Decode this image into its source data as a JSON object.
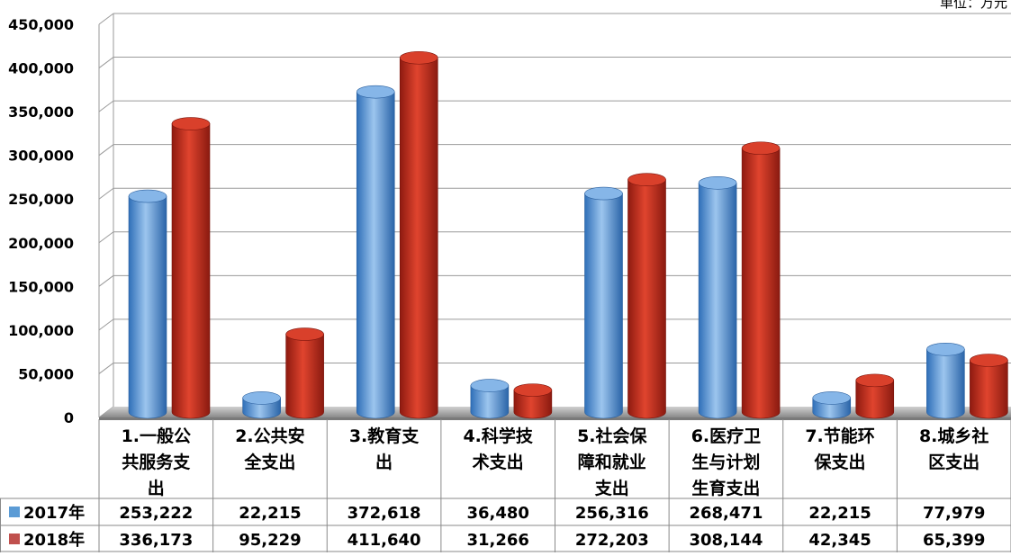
{
  "unit_note": "单位：万元",
  "chart_data": {
    "type": "bar",
    "categories": [
      [
        "1.一般公",
        "共服务支",
        "出"
      ],
      [
        "2.公共安",
        "全支出"
      ],
      [
        "3.教育支",
        "出"
      ],
      [
        "4.科学技",
        "术支出"
      ],
      [
        "5.社会保",
        "障和就业",
        "支出"
      ],
      [
        "6.医疗卫",
        "生与计划",
        "生育支出"
      ],
      [
        "7.节能环",
        "保支出"
      ],
      [
        "8.城乡社",
        "区支出"
      ]
    ],
    "series": [
      {
        "name": "2017年",
        "color": "#5b9bd5",
        "values": [
          253222,
          22215,
          372618,
          36480,
          256316,
          268471,
          22215,
          77979
        ],
        "labels": [
          "253,222",
          "22,215",
          "372,618",
          "36,480",
          "256,316",
          "268,471",
          "22,215",
          "77,979"
        ]
      },
      {
        "name": "2018年",
        "color": "#c0504d",
        "values": [
          336173,
          95229,
          411640,
          31266,
          272203,
          308144,
          42345,
          65399
        ],
        "labels": [
          "336,173",
          "95,229",
          "411,640",
          "31,266",
          "272,203",
          "308,144",
          "42,345",
          "65,399"
        ]
      }
    ],
    "ylim": [
      0,
      450000
    ],
    "yticks": [
      0,
      50000,
      100000,
      150000,
      200000,
      250000,
      300000,
      350000,
      400000,
      450000
    ],
    "ytick_labels": [
      "0",
      "50,000",
      "100,000",
      "150,000",
      "200,000",
      "250,000",
      "300,000",
      "350,000",
      "400,000",
      "450,000"
    ],
    "grid": true,
    "legend_placement": "data-table"
  }
}
